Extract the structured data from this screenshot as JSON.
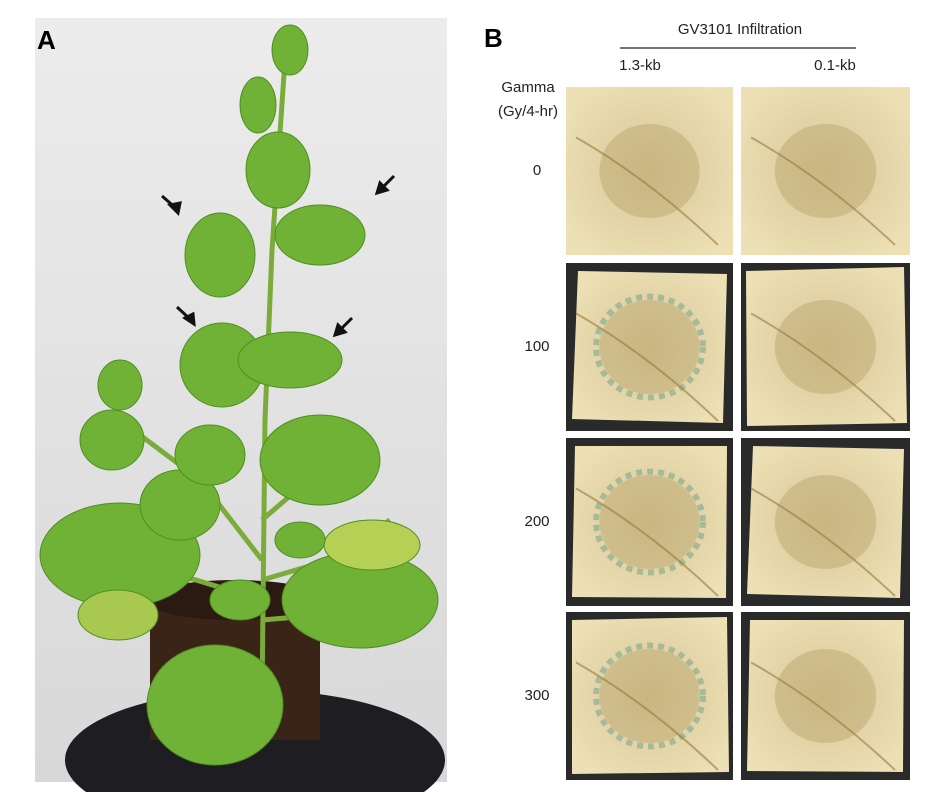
{
  "panel_a": {
    "label": "A"
  },
  "panel_b": {
    "label": "B",
    "header": "GV3101 Infiltration",
    "columns": [
      "1.3-kb",
      "0.1-kb"
    ],
    "row_axis_title": [
      "Gamma",
      "(Gy/4-hr)"
    ],
    "rows": [
      "0",
      "100",
      "200",
      "300"
    ]
  }
}
